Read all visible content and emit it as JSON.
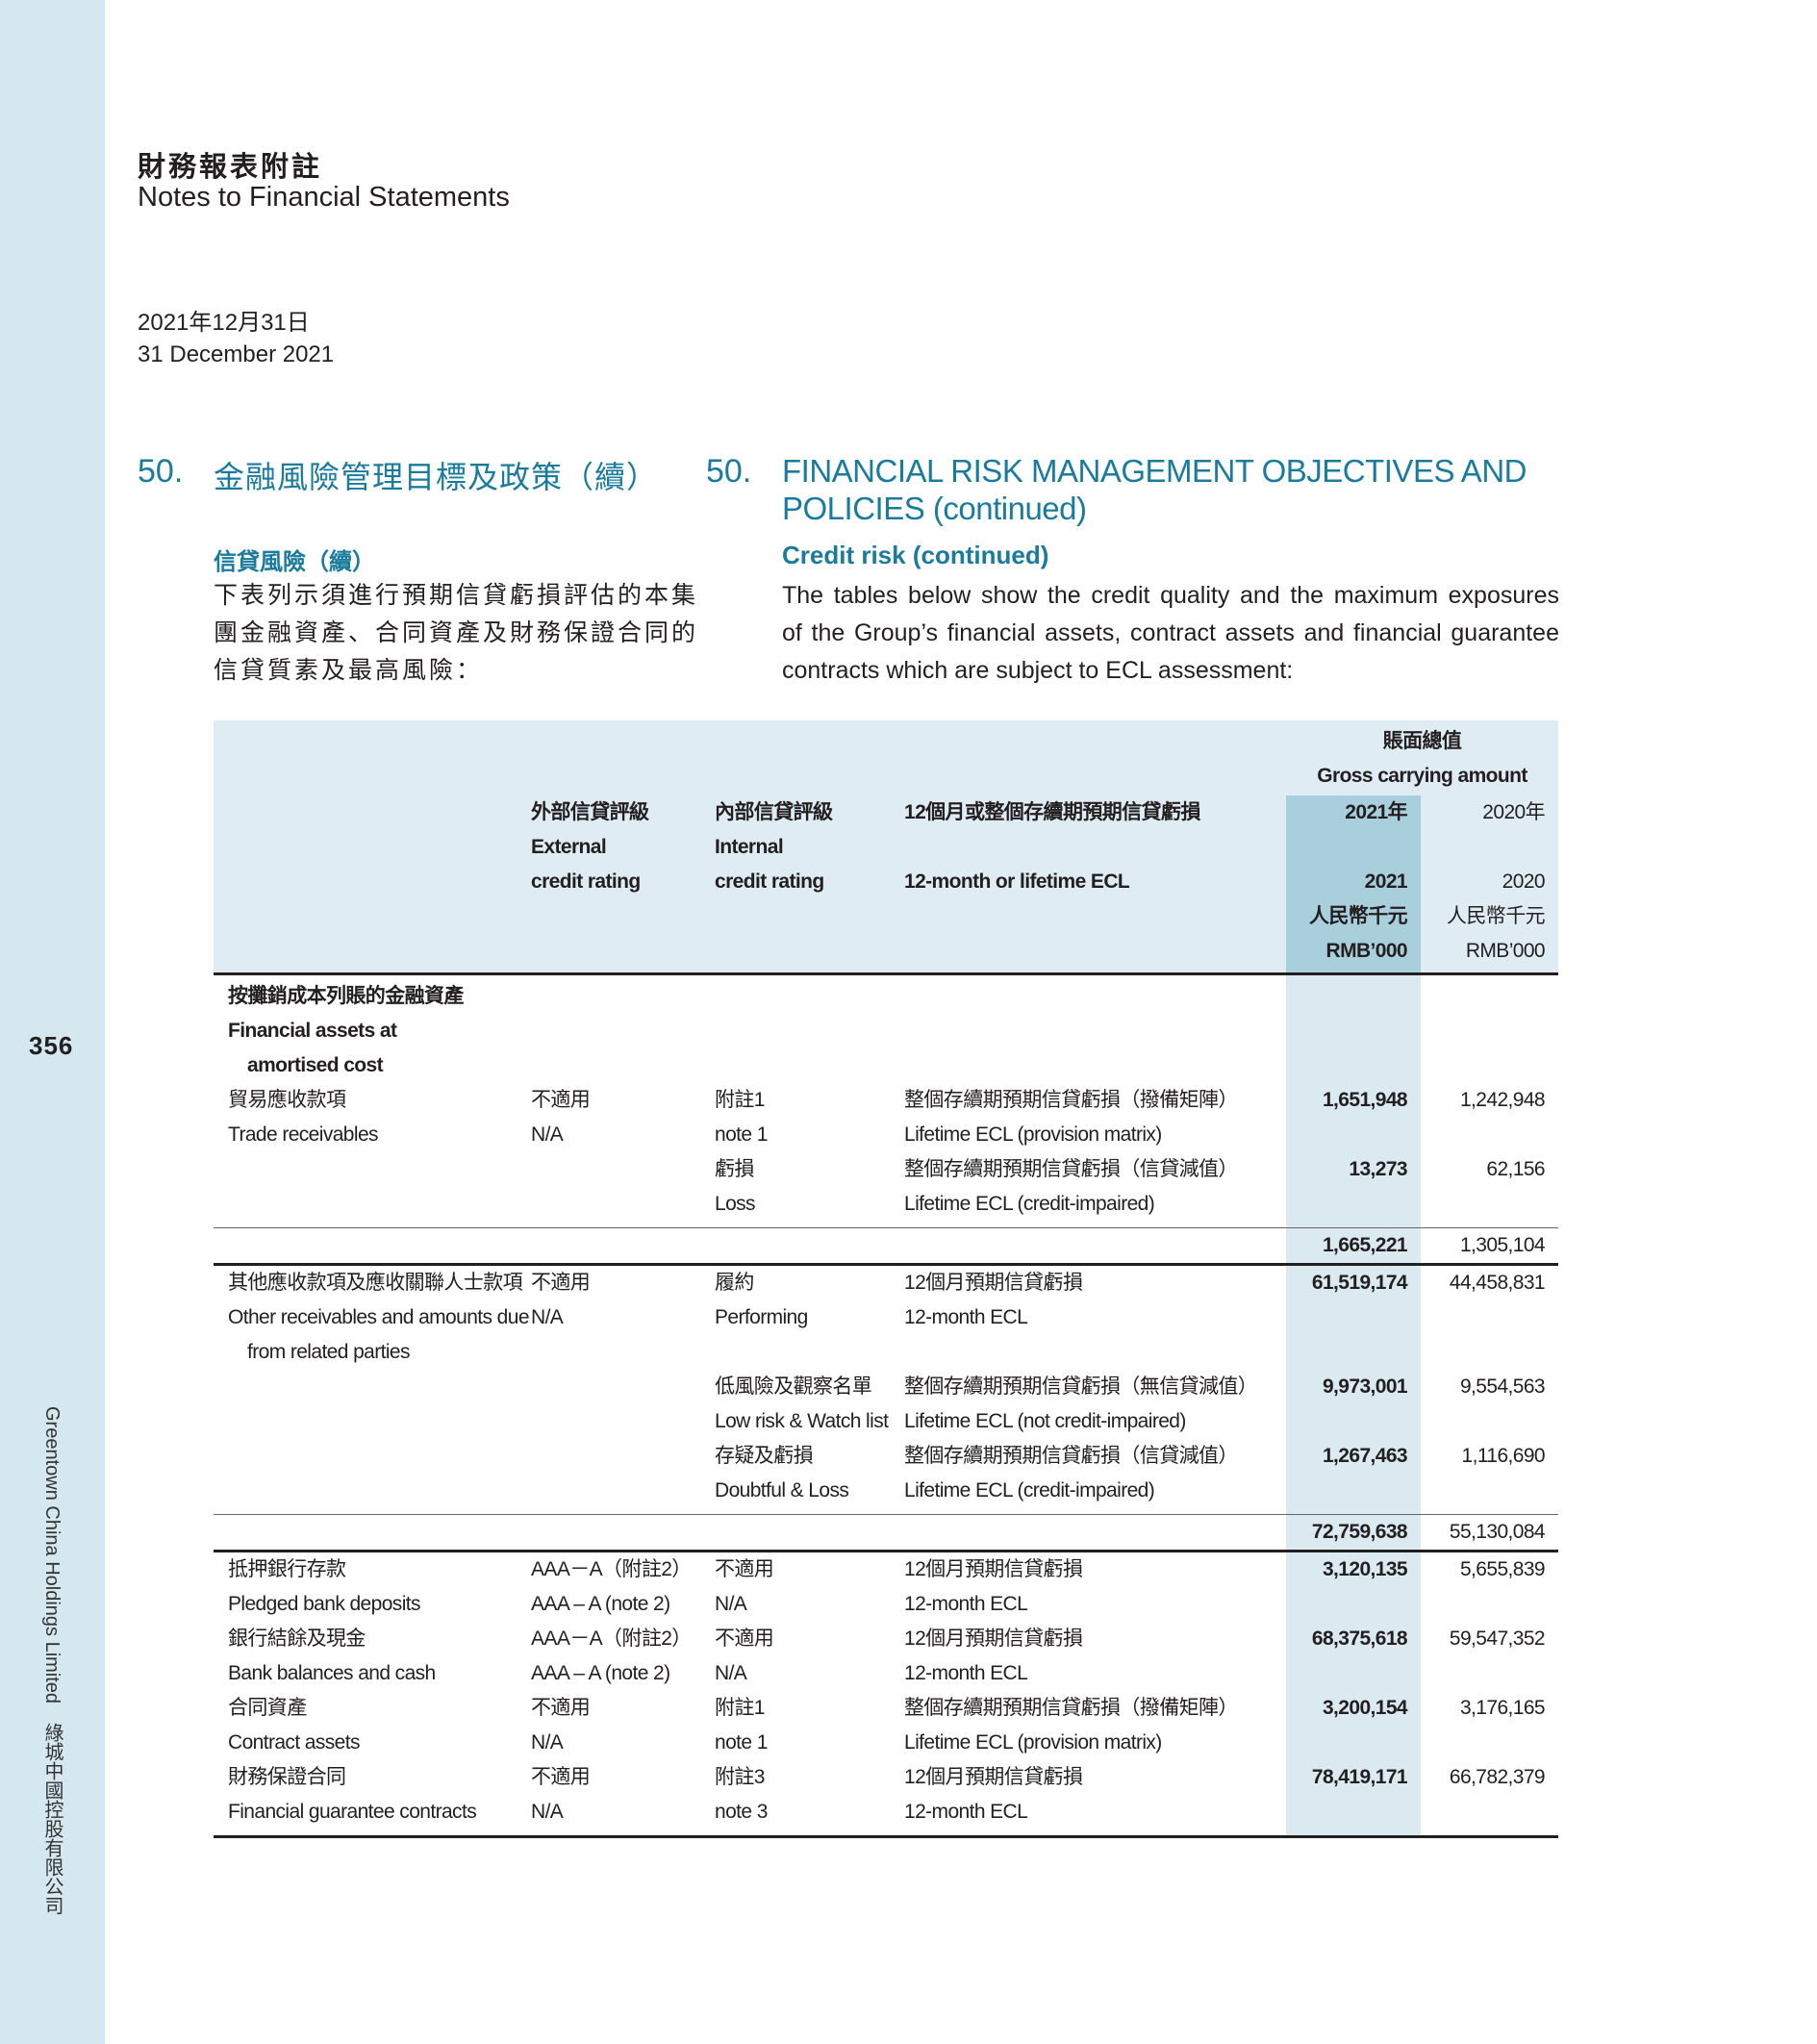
{
  "sidebar": {
    "page_number": "356",
    "company": "Greentown China Holdings Limited　綠城中國控股有限公司"
  },
  "header": {
    "title_zh": "財務報表附註",
    "title_en": "Notes to Financial Statements",
    "date_zh": "2021年12月31日",
    "date_en": "31 December 2021"
  },
  "section": {
    "number": "50.",
    "title_zh": "金融風險管理目標及政策（續）",
    "title_en_1": "FINANCIAL RISK MANAGEMENT OBJECTIVES AND",
    "title_en_2": "POLICIES (continued)",
    "sub_zh": "信貸風險（續）",
    "sub_en": "Credit risk (continued)",
    "para_zh": [
      "下表列示須進行預期信貸虧損評估的本集",
      "團金融資產、合同資產及財務保證合同的",
      "信貸質素及最高風險："
    ],
    "para_en": [
      "The tables below show the credit quality and the maximum exposures",
      "of the Group’s financial assets, contract assets and financial guarantee",
      "contracts which are subject to ECL assessment:"
    ]
  },
  "colors": {
    "accent": "#1a7b9c",
    "sidebar": "#d5e7ef",
    "header_bg": "#dfecf3",
    "highlight_header": "#a9cfdd",
    "highlight_body": "#dbe9f1"
  },
  "table": {
    "header": {
      "gross_zh": "賬面總值",
      "gross_en": "Gross carrying amount",
      "ext_zh": "外部信貸評級",
      "ext_en1": "External",
      "ext_en2": "credit rating",
      "int_zh": "內部信貸評級",
      "int_en1": "Internal",
      "int_en2": "credit rating",
      "ecl_zh": "12個月或整個存續期預期信貸虧損",
      "ecl_en": "12-month or lifetime ECL",
      "y2021_zh": "2021年",
      "y2021": "2021",
      "unit_zh_2021": "人民幣千元",
      "unit_en_2021": "RMB’000",
      "y2020_zh": "2020年",
      "y2020": "2020",
      "unit_zh_2020": "人民幣千元",
      "unit_en_2020": "RMB’000"
    },
    "sections": [
      {
        "heading": [
          "按攤銷成本列賬的金融資產",
          "Financial assets at",
          "amortised cost"
        ],
        "rows": [
          {
            "label": [
              "貿易應收款項",
              "Trade receivables"
            ],
            "ext": [
              "不適用",
              "N/A"
            ],
            "int": [
              "附註1",
              "note 1"
            ],
            "ecl": [
              "整個存續期預期信貸虧損（撥備矩陣）",
              "Lifetime ECL (provision matrix)"
            ],
            "v2021": "1,651,948",
            "v2020": "1,242,948"
          },
          {
            "label": [],
            "ext": [],
            "int": [
              "虧損",
              "Loss"
            ],
            "ecl": [
              "整個存續期預期信貸虧損（信貸減值）",
              "Lifetime ECL (credit-impaired)"
            ],
            "v2021": "13,273",
            "v2020": "62,156"
          }
        ],
        "total": {
          "v2021": "1,665,221",
          "v2020": "1,305,104"
        }
      },
      {
        "heading": [],
        "rows": [
          {
            "label": [
              "其他應收款項及應收關聯人士款項",
              "Other receivables and amounts due",
              "from related parties"
            ],
            "ext": [
              "不適用",
              "N/A"
            ],
            "int": [
              "履約",
              "Performing"
            ],
            "ecl": [
              "12個月預期信貸虧損",
              "12-month ECL"
            ],
            "v2021": "61,519,174",
            "v2020": "44,458,831"
          },
          {
            "label": [],
            "ext": [],
            "int": [
              "低風險及觀察名單",
              "Low risk & Watch list"
            ],
            "ecl": [
              "整個存續期預期信貸虧損（無信貸減值）",
              "Lifetime ECL (not credit-impaired)"
            ],
            "v2021": "9,973,001",
            "v2020": "9,554,563"
          },
          {
            "label": [],
            "ext": [],
            "int": [
              "存疑及虧損",
              "Doubtful & Loss"
            ],
            "ecl": [
              "整個存續期預期信貸虧損（信貸減值）",
              "Lifetime ECL (credit-impaired)"
            ],
            "v2021": "1,267,463",
            "v2020": "1,116,690"
          }
        ],
        "total": {
          "v2021": "72,759,638",
          "v2020": "55,130,084"
        }
      },
      {
        "heading": [],
        "rows": [
          {
            "label": [
              "抵押銀行存款",
              "Pledged bank deposits"
            ],
            "ext": [
              "AAA－A（附註2）",
              "AAA – A (note 2)"
            ],
            "int": [
              "不適用",
              "N/A"
            ],
            "ecl": [
              "12個月預期信貸虧損",
              "12-month ECL"
            ],
            "v2021": "3,120,135",
            "v2020": "5,655,839"
          },
          {
            "label": [
              "銀行結餘及現金",
              "Bank balances and cash"
            ],
            "ext": [
              "AAA－A（附註2）",
              "AAA – A (note 2)"
            ],
            "int": [
              "不適用",
              "N/A"
            ],
            "ecl": [
              "12個月預期信貸虧損",
              "12-month ECL"
            ],
            "v2021": "68,375,618",
            "v2020": "59,547,352"
          },
          {
            "label": [
              "合同資產",
              "Contract assets"
            ],
            "ext": [
              "不適用",
              "N/A"
            ],
            "int": [
              "附註1",
              "note 1"
            ],
            "ecl": [
              "整個存續期預期信貸虧損（撥備矩陣）",
              "Lifetime ECL (provision matrix)"
            ],
            "v2021": "3,200,154",
            "v2020": "3,176,165"
          },
          {
            "label": [
              "財務保證合同",
              "Financial guarantee contracts"
            ],
            "ext": [
              "不適用",
              "N/A"
            ],
            "int": [
              "附註3",
              "note 3"
            ],
            "ecl": [
              "12個月預期信貸虧損",
              "12-month ECL"
            ],
            "v2021": "78,419,171",
            "v2020": "66,782,379"
          }
        ],
        "total": null
      }
    ]
  }
}
